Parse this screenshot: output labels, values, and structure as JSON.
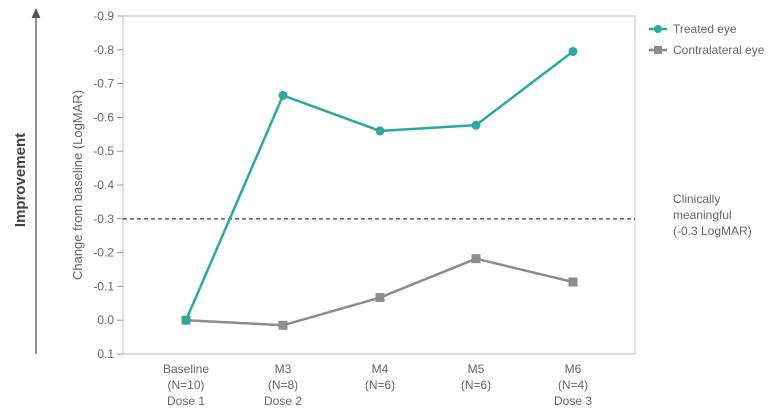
{
  "chart_data": {
    "type": "line",
    "categories": [
      [
        "Baseline",
        "(N=10)",
        "Dose 1"
      ],
      [
        "M3",
        "(N=8)",
        "Dose 2"
      ],
      [
        "M4",
        "(N=6)"
      ],
      [
        "M5",
        "(N=6)"
      ],
      [
        "M6",
        "(N=4)",
        "Dose 3"
      ]
    ],
    "series": [
      {
        "name": "Treated eye",
        "color": "#2aaa9e",
        "marker": "circle",
        "values": [
          0.0,
          -0.665,
          -0.56,
          -0.577,
          -0.795
        ]
      },
      {
        "name": "Contralateral eye",
        "color": "#8c8c8c",
        "marker": "square",
        "values": [
          0.0,
          0.015,
          -0.067,
          -0.182,
          -0.113
        ]
      }
    ],
    "ylabel": "Change from baseline (LogMAR)",
    "ylim": [
      0.1,
      -0.9
    ],
    "yticks": [
      0.1,
      0.0,
      -0.1,
      -0.2,
      -0.3,
      -0.4,
      -0.5,
      -0.6,
      -0.7,
      -0.8,
      -0.9
    ],
    "ytick_labels": [
      "0.1",
      "0.0",
      "-0.1",
      "-0.2",
      "-0.3",
      "-0.4",
      "-0.5",
      "-0.6",
      "-0.7",
      "-0.8",
      "-0.9"
    ],
    "y_inverted": true,
    "reference_line": {
      "value": -0.3,
      "style": "dashed",
      "label": [
        "Clinically",
        "meaningful",
        "(-0.3 LogMAR)"
      ]
    },
    "side_label": "Improvement",
    "legend_position": "top-right",
    "grid": false
  }
}
